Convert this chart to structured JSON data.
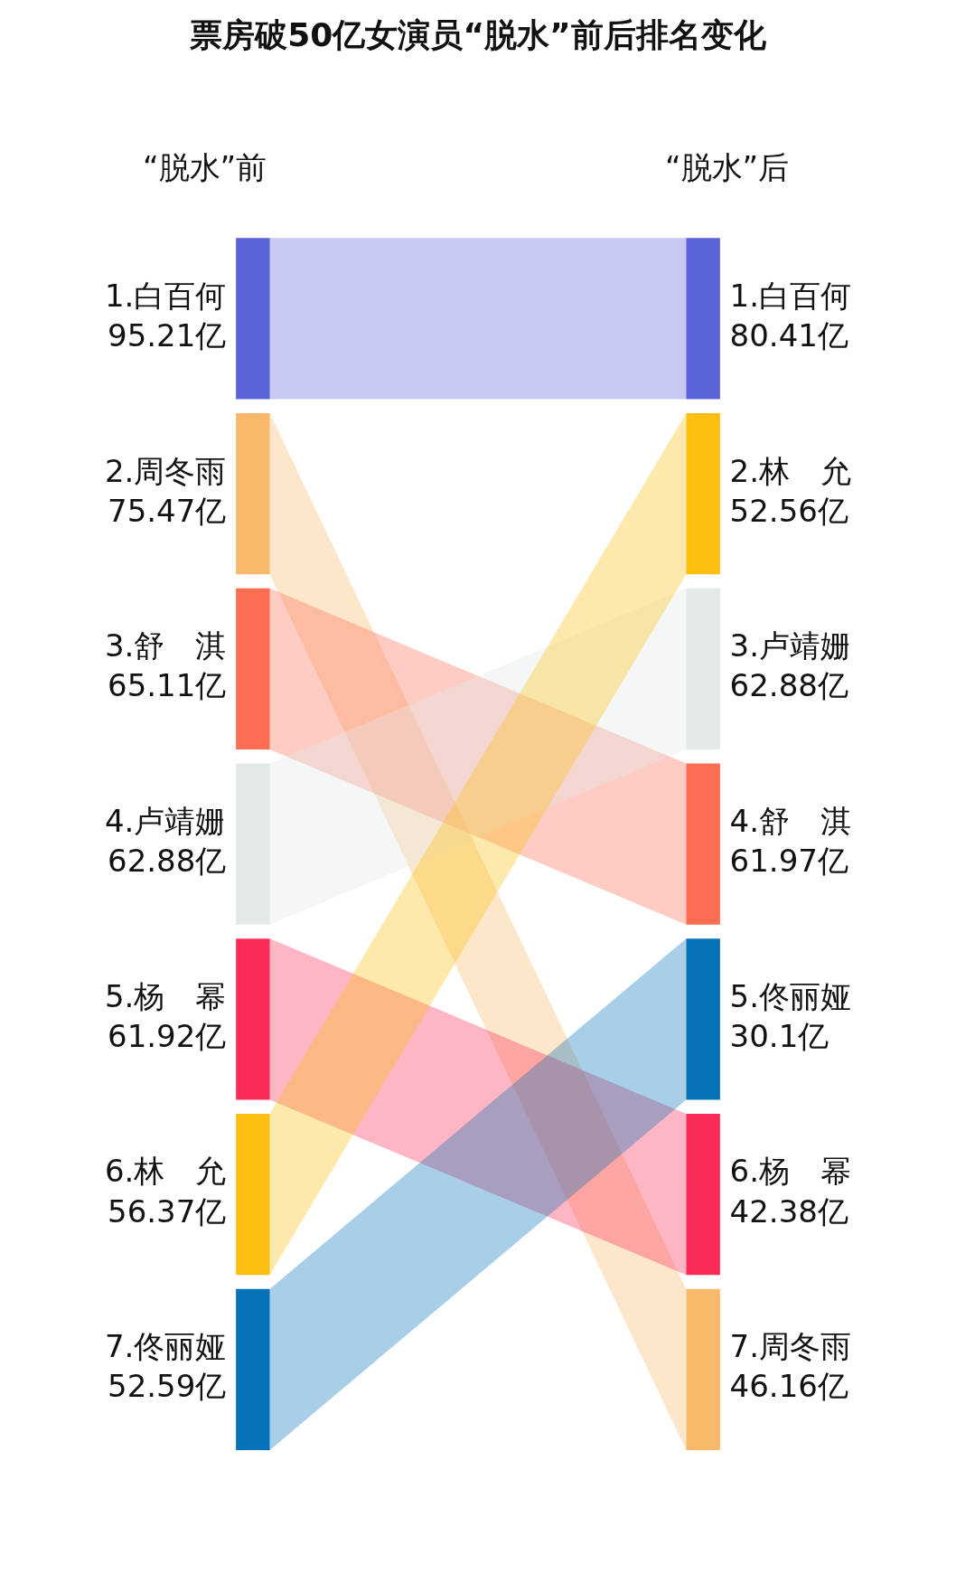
{
  "chart_data": {
    "type": "other",
    "title": "票房破50亿女演员“脱水”前后排名变化",
    "categories": [
      "“脱水”前",
      "“脱水”后"
    ],
    "series": [
      {
        "color": "#5b63d8",
        "values": [
          1,
          1
        ],
        "value_labels": [
          "1.白百何\n95.21亿",
          "1.白百何\n80.41亿"
        ]
      },
      {
        "color": "#f9b96a",
        "values": [
          2,
          7
        ],
        "value_labels": [
          "2.周冬雨\n75.47亿",
          "7.周冬雨\n46.16亿"
        ]
      },
      {
        "color": "#fd6d52",
        "values": [
          3,
          4
        ],
        "value_labels": [
          "3.舒　淇\n65.11亿",
          "4.舒　淇\n61.97亿"
        ]
      },
      {
        "color": "#e3e8e9",
        "values": [
          4,
          3
        ],
        "value_labels": [
          "4.卢靖姗\n62.88亿",
          "3.卢靖姗\n62.88亿"
        ]
      },
      {
        "color": "#fb2c57",
        "values": [
          5,
          6
        ],
        "value_labels": [
          "5.杨　幂\n61.92亿",
          "6.杨　幂\n42.38亿"
        ]
      },
      {
        "color": "#fcbf10",
        "values": [
          6,
          2
        ],
        "value_labels": [
          "6.林　允\n56.37亿",
          "2.林　允\n52.56亿"
        ]
      },
      {
        "color": "#0872b9",
        "values": [
          7,
          5
        ],
        "value_labels": [
          "7.佟丽娅\n52.59亿",
          "5.佟丽娅\n30.1亿"
        ]
      }
    ]
  }
}
